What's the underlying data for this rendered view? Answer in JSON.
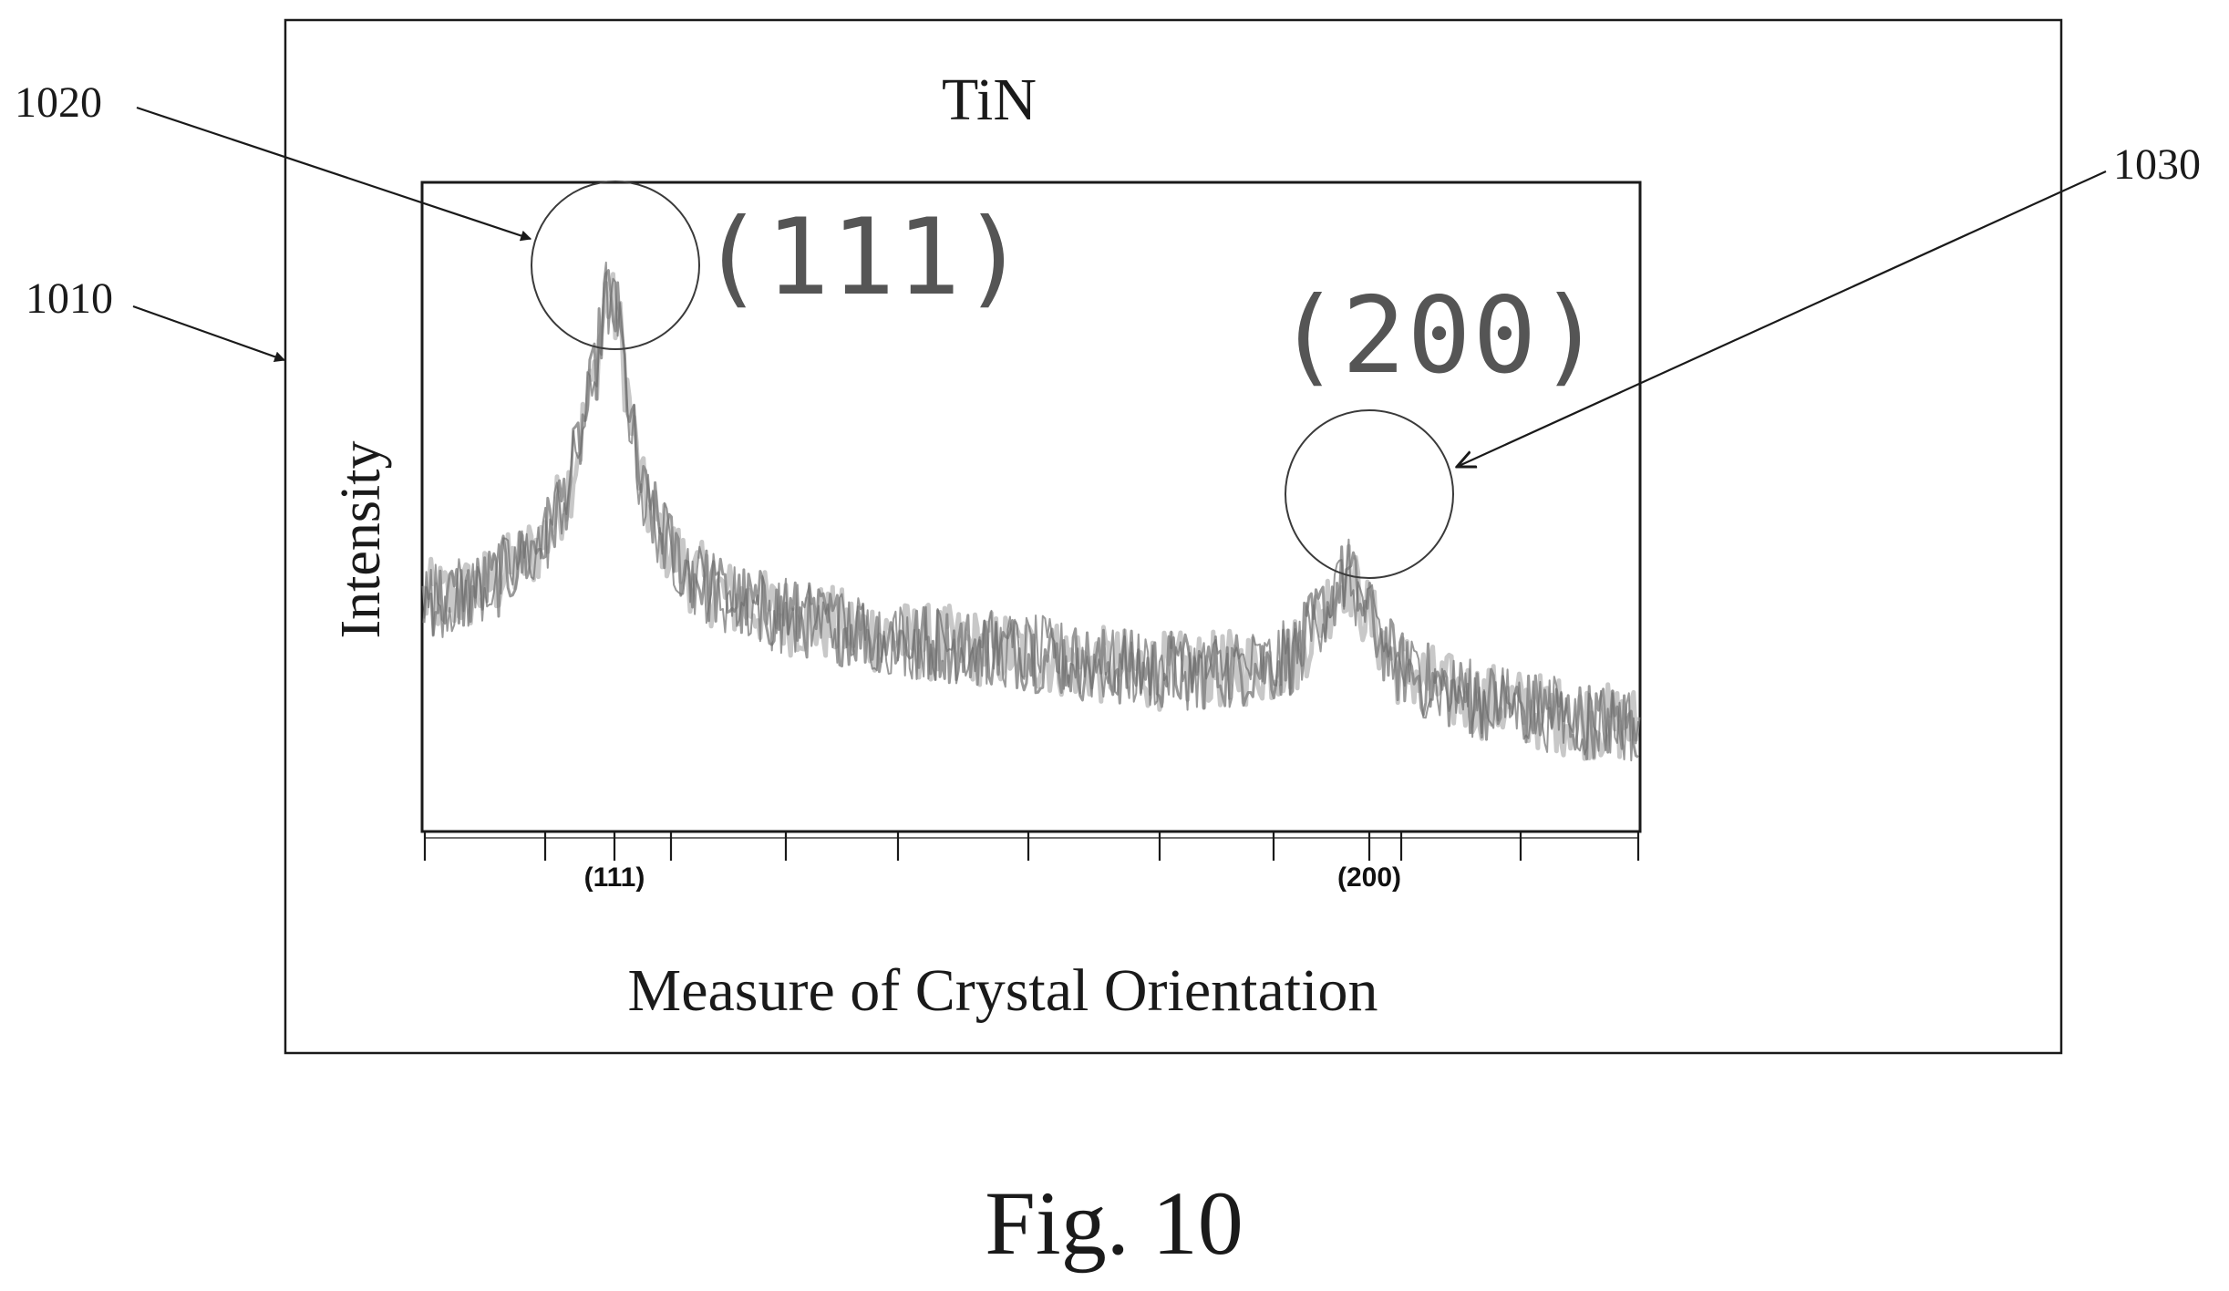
{
  "figure": {
    "caption": "Fig. 10",
    "ref_outer_box": "1010",
    "ref_peak_111": "1020",
    "ref_peak_200": "1030"
  },
  "chart_data": {
    "type": "line",
    "title": "TiN",
    "xlabel": "Measure of Crystal Orientation",
    "ylabel": "Intensity",
    "tick_labels": [
      "(111)",
      "(200)"
    ],
    "peak_labels": [
      "(111)",
      "(200)"
    ],
    "grid": false,
    "series": [
      {
        "color": "#808080",
        "x": [
          0,
          0.02,
          0.04,
          0.06,
          0.08,
          0.1,
          0.12,
          0.14,
          0.15,
          0.16,
          0.17,
          0.18,
          0.2,
          0.22,
          0.25,
          0.3,
          0.35,
          0.4,
          0.45,
          0.5,
          0.55,
          0.6,
          0.65,
          0.7,
          0.72,
          0.74,
          0.76,
          0.78,
          0.8,
          0.85,
          0.9,
          0.95,
          1.0
        ],
        "values": [
          0.38,
          0.38,
          0.39,
          0.41,
          0.44,
          0.48,
          0.57,
          0.74,
          0.88,
          0.84,
          0.68,
          0.55,
          0.47,
          0.42,
          0.38,
          0.35,
          0.33,
          0.31,
          0.3,
          0.29,
          0.27,
          0.26,
          0.26,
          0.27,
          0.29,
          0.36,
          0.42,
          0.34,
          0.27,
          0.22,
          0.2,
          0.18,
          0.17
        ],
        "noise": 0.065
      }
    ]
  }
}
